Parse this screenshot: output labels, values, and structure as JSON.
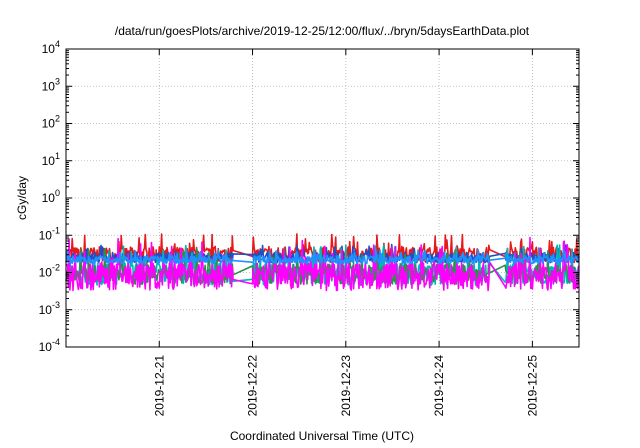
{
  "chart_data": {
    "type": "line",
    "title": "/data/run/goesPlots/archive/2019-12-25/12:00/flux/../bryn/5daysEarthData.plot",
    "xlabel": "Coordinated Universal Time (UTC)",
    "ylabel": "cGy/day",
    "yscale": "log",
    "grid": true,
    "ylim": [
      0.0001,
      10000
    ],
    "xlim": [
      "2019-12-20T00:00",
      "2019-12-25T12:00"
    ],
    "y_ticks": [
      {
        "value": 0.0001,
        "base": "10",
        "exp": "-4"
      },
      {
        "value": 0.001,
        "base": "10",
        "exp": "-3"
      },
      {
        "value": 0.01,
        "base": "10",
        "exp": "-2"
      },
      {
        "value": 0.1,
        "base": "10",
        "exp": "-1"
      },
      {
        "value": 1,
        "base": "10",
        "exp": "0"
      },
      {
        "value": 10,
        "base": "10",
        "exp": "1"
      },
      {
        "value": 100,
        "base": "10",
        "exp": "2"
      },
      {
        "value": 1000,
        "base": "10",
        "exp": "3"
      },
      {
        "value": 10000,
        "base": "10",
        "exp": "4"
      }
    ],
    "x_ticks": [
      "2019-12-21",
      "2019-12-22",
      "2019-12-23",
      "2019-12-24",
      "2019-12-25"
    ],
    "series": [
      {
        "color": "#e41a1c",
        "level": 0.03,
        "spread": 0.7
      },
      {
        "color": "#1f4fc8",
        "level": 0.025,
        "spread": 0.45
      },
      {
        "color": "#00b8b8",
        "level": 0.009,
        "spread": 1.0
      },
      {
        "color": "#2f8f4a",
        "level": 0.009,
        "spread": 0.9
      },
      {
        "color": "#ff00ff",
        "level": 0.008,
        "spread": 1.3
      },
      {
        "color": "#1e90ff",
        "level": 0.022,
        "spread": 0.35
      }
    ]
  }
}
